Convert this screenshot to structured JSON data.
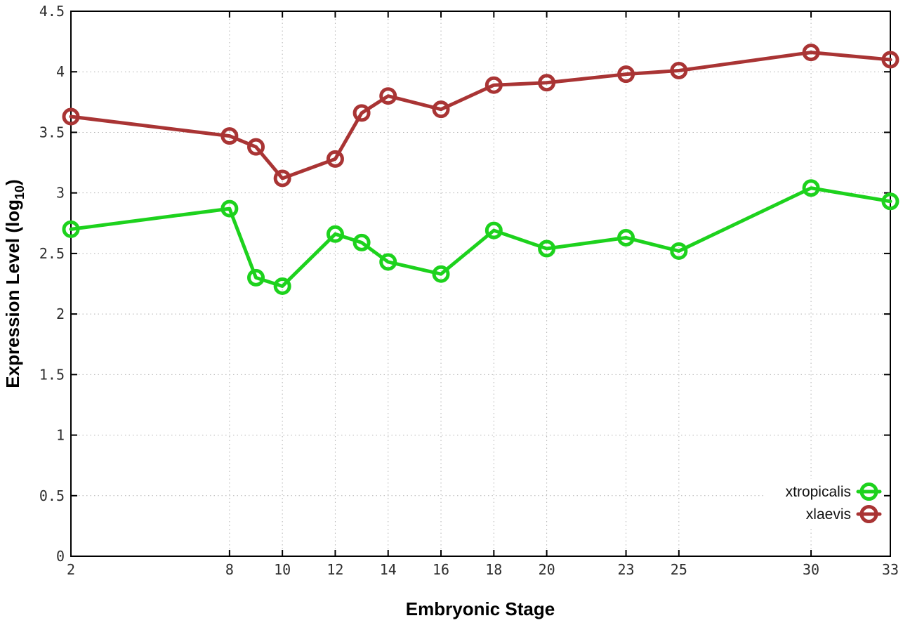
{
  "chart_data": {
    "type": "line",
    "title": "",
    "xlabel": "Embryonic Stage",
    "ylabel": "Expression Level (log10)",
    "ylabel_parts": {
      "main": "Expression Level (log",
      "sub": "10",
      "suffix": ")"
    },
    "xlim": [
      2,
      33
    ],
    "ylim": [
      0,
      4.5
    ],
    "grid": true,
    "legend_position": "bottom-right",
    "xticks": [
      2,
      8,
      10,
      12,
      14,
      16,
      18,
      20,
      23,
      25,
      30,
      33
    ],
    "xtick_labels": [
      "2",
      "8",
      "10",
      "12",
      "14",
      "16",
      "18",
      "20",
      "23",
      "25",
      "30",
      "33"
    ],
    "yticks": [
      0,
      0.5,
      1,
      1.5,
      2,
      2.5,
      3,
      3.5,
      4,
      4.5
    ],
    "ytick_labels": [
      "0",
      "0.5",
      "1",
      "1.5",
      "2",
      "2.5",
      "3",
      "3.5",
      "4",
      "4.5"
    ],
    "x": [
      2,
      8,
      9,
      10,
      12,
      13,
      14,
      16,
      18,
      20,
      23,
      25,
      30,
      33
    ],
    "series": [
      {
        "name": "xtropicalis",
        "color": "#1dd21d",
        "values": [
          2.7,
          2.87,
          2.3,
          2.23,
          2.66,
          2.59,
          2.43,
          2.33,
          2.69,
          2.54,
          2.63,
          2.52,
          3.04,
          2.93
        ]
      },
      {
        "name": "xlaevis",
        "color": "#a93434",
        "values": [
          3.63,
          3.47,
          3.38,
          3.12,
          3.28,
          3.66,
          3.8,
          3.69,
          3.89,
          3.91,
          3.98,
          4.01,
          4.16,
          4.1
        ]
      }
    ]
  },
  "styles": {
    "background": "#ffffff",
    "grid_color": "#b3b3b3",
    "axis_color": "#000000",
    "tick_label_color": "#2e2e2e"
  }
}
